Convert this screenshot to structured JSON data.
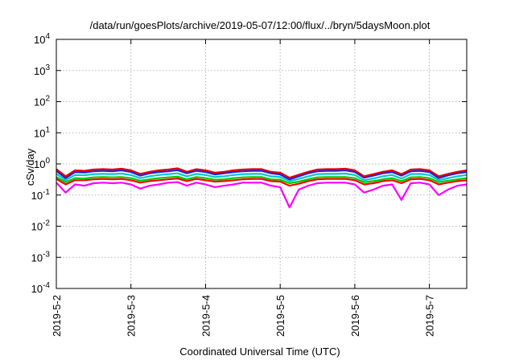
{
  "chart_data": {
    "type": "line",
    "title": "/data/run/goesPlots/archive/2019-05-07/12:00/flux/../bryn/5daysMoon.plot",
    "xlabel": "Coordinated Universal Time (UTC)",
    "ylabel": "cSv/day",
    "yscale": "log",
    "ylim": [
      0.0001,
      10000
    ],
    "y_ticks": [
      {
        "value": 0.0001,
        "base": "10",
        "exp": "-4"
      },
      {
        "value": 0.001,
        "base": "10",
        "exp": "-3"
      },
      {
        "value": 0.01,
        "base": "10",
        "exp": "-2"
      },
      {
        "value": 0.1,
        "base": "10",
        "exp": "-1"
      },
      {
        "value": 1,
        "base": "10",
        "exp": "0"
      },
      {
        "value": 10,
        "base": "10",
        "exp": "1"
      },
      {
        "value": 100,
        "base": "10",
        "exp": "2"
      },
      {
        "value": 1000,
        "base": "10",
        "exp": "3"
      },
      {
        "value": 10000,
        "base": "10",
        "exp": "4"
      }
    ],
    "xlim": [
      "2019-05-02",
      "2019-05-07T12:00"
    ],
    "x_ticks": [
      {
        "value": "2019-05-02",
        "label": "2019-5-2"
      },
      {
        "value": "2019-05-03",
        "label": "2019-5-3"
      },
      {
        "value": "2019-05-04",
        "label": "2019-5-4"
      },
      {
        "value": "2019-05-05",
        "label": "2019-5-5"
      },
      {
        "value": "2019-05-06",
        "label": "2019-5-6"
      },
      {
        "value": "2019-05-07",
        "label": "2019-5-7"
      }
    ],
    "grid": true,
    "legend": "none",
    "x": [
      "2019-05-02T00:00",
      "2019-05-02T03:00",
      "2019-05-02T06:00",
      "2019-05-02T09:00",
      "2019-05-02T12:00",
      "2019-05-02T15:00",
      "2019-05-02T18:00",
      "2019-05-02T21:00",
      "2019-05-03T00:00",
      "2019-05-03T03:00",
      "2019-05-03T06:00",
      "2019-05-03T09:00",
      "2019-05-03T12:00",
      "2019-05-03T15:00",
      "2019-05-03T18:00",
      "2019-05-03T21:00",
      "2019-05-04T00:00",
      "2019-05-04T03:00",
      "2019-05-04T06:00",
      "2019-05-04T09:00",
      "2019-05-04T12:00",
      "2019-05-04T15:00",
      "2019-05-04T18:00",
      "2019-05-04T21:00",
      "2019-05-05T00:00",
      "2019-05-05T03:00",
      "2019-05-05T06:00",
      "2019-05-05T09:00",
      "2019-05-05T12:00",
      "2019-05-05T15:00",
      "2019-05-05T18:00",
      "2019-05-05T21:00",
      "2019-05-06T00:00",
      "2019-05-06T03:00",
      "2019-05-06T06:00",
      "2019-05-06T09:00",
      "2019-05-06T12:00",
      "2019-05-06T15:00",
      "2019-05-06T18:00",
      "2019-05-06T21:00",
      "2019-05-07T00:00",
      "2019-05-07T03:00",
      "2019-05-07T06:00",
      "2019-05-07T09:00",
      "2019-05-07T12:00"
    ],
    "series": [
      {
        "color": "#ff00ff",
        "values": [
          0.25,
          0.12,
          0.22,
          0.2,
          0.24,
          0.25,
          0.24,
          0.25,
          0.22,
          0.16,
          0.2,
          0.22,
          0.25,
          0.26,
          0.2,
          0.25,
          0.22,
          0.18,
          0.2,
          0.22,
          0.25,
          0.25,
          0.25,
          0.2,
          0.18,
          0.04,
          0.15,
          0.2,
          0.24,
          0.25,
          0.25,
          0.25,
          0.22,
          0.12,
          0.15,
          0.2,
          0.22,
          0.07,
          0.24,
          0.25,
          0.22,
          0.1,
          0.15,
          0.2,
          0.22
        ]
      },
      {
        "color": "#ff0000",
        "values": [
          0.33,
          0.22,
          0.3,
          0.3,
          0.32,
          0.33,
          0.32,
          0.33,
          0.3,
          0.25,
          0.28,
          0.3,
          0.32,
          0.34,
          0.28,
          0.33,
          0.3,
          0.27,
          0.28,
          0.3,
          0.32,
          0.33,
          0.33,
          0.28,
          0.27,
          0.2,
          0.23,
          0.28,
          0.32,
          0.33,
          0.33,
          0.33,
          0.3,
          0.22,
          0.24,
          0.28,
          0.3,
          0.24,
          0.32,
          0.33,
          0.3,
          0.22,
          0.25,
          0.28,
          0.3
        ]
      },
      {
        "color": "#00c800",
        "values": [
          0.38,
          0.26,
          0.35,
          0.34,
          0.37,
          0.38,
          0.37,
          0.38,
          0.35,
          0.29,
          0.32,
          0.35,
          0.37,
          0.39,
          0.32,
          0.38,
          0.35,
          0.31,
          0.32,
          0.35,
          0.37,
          0.38,
          0.38,
          0.32,
          0.31,
          0.24,
          0.27,
          0.32,
          0.37,
          0.38,
          0.38,
          0.38,
          0.35,
          0.26,
          0.28,
          0.32,
          0.35,
          0.28,
          0.37,
          0.38,
          0.35,
          0.26,
          0.29,
          0.32,
          0.35
        ]
      },
      {
        "color": "#00c8c8",
        "values": [
          0.48,
          0.3,
          0.44,
          0.43,
          0.47,
          0.48,
          0.47,
          0.49,
          0.44,
          0.35,
          0.4,
          0.44,
          0.47,
          0.5,
          0.4,
          0.48,
          0.44,
          0.38,
          0.4,
          0.44,
          0.47,
          0.48,
          0.48,
          0.4,
          0.38,
          0.28,
          0.33,
          0.4,
          0.47,
          0.48,
          0.48,
          0.49,
          0.44,
          0.3,
          0.34,
          0.4,
          0.44,
          0.34,
          0.47,
          0.48,
          0.44,
          0.3,
          0.35,
          0.4,
          0.44
        ]
      },
      {
        "color": "#2020e0",
        "values": [
          0.6,
          0.35,
          0.55,
          0.53,
          0.58,
          0.6,
          0.58,
          0.62,
          0.55,
          0.42,
          0.5,
          0.55,
          0.58,
          0.63,
          0.5,
          0.6,
          0.55,
          0.46,
          0.5,
          0.55,
          0.58,
          0.6,
          0.6,
          0.5,
          0.46,
          0.32,
          0.4,
          0.5,
          0.58,
          0.6,
          0.6,
          0.62,
          0.55,
          0.36,
          0.42,
          0.5,
          0.55,
          0.42,
          0.58,
          0.6,
          0.55,
          0.35,
          0.43,
          0.5,
          0.55
        ]
      },
      {
        "color": "#e00000",
        "values": [
          0.68,
          0.4,
          0.62,
          0.6,
          0.66,
          0.68,
          0.66,
          0.7,
          0.62,
          0.48,
          0.56,
          0.62,
          0.66,
          0.72,
          0.56,
          0.68,
          0.62,
          0.52,
          0.56,
          0.62,
          0.66,
          0.68,
          0.68,
          0.56,
          0.52,
          0.36,
          0.45,
          0.56,
          0.66,
          0.68,
          0.68,
          0.7,
          0.62,
          0.4,
          0.47,
          0.56,
          0.62,
          0.47,
          0.66,
          0.68,
          0.62,
          0.4,
          0.48,
          0.56,
          0.62
        ]
      }
    ]
  }
}
